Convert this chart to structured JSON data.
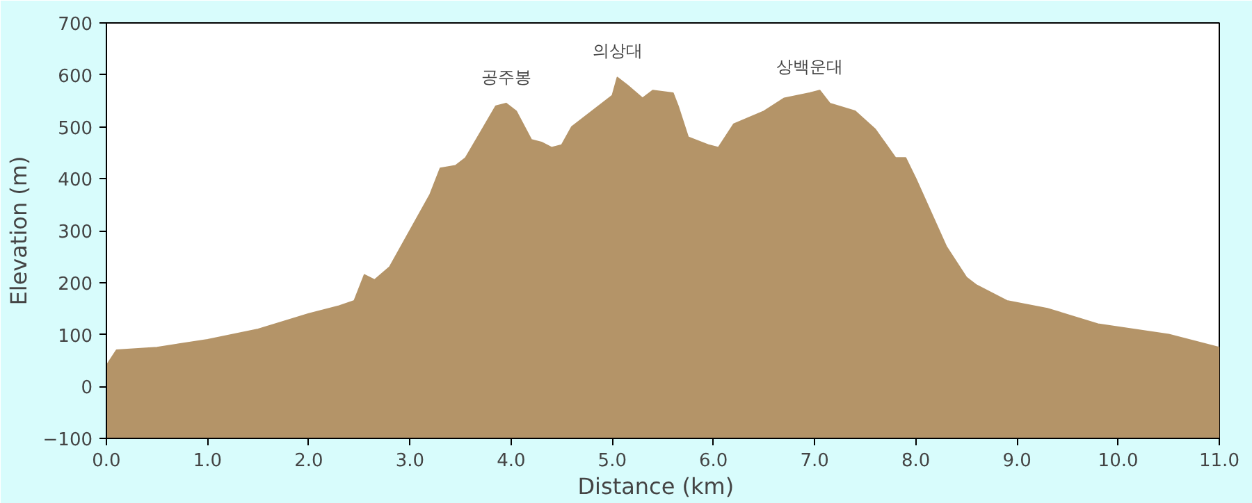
{
  "chart_data": {
    "type": "area",
    "xlabel": "Distance   (km)",
    "ylabel": "Elevation (m)",
    "xlim": [
      0,
      11.0
    ],
    "ylim": [
      -100,
      700
    ],
    "xticks": [
      {
        "value": 0,
        "label": "0.0"
      },
      {
        "value": 1,
        "label": "1.0"
      },
      {
        "value": 2,
        "label": "2.0"
      },
      {
        "value": 3,
        "label": "3.0"
      },
      {
        "value": 4,
        "label": "4.0"
      },
      {
        "value": 5,
        "label": "5.0"
      },
      {
        "value": 6,
        "label": "6.0"
      },
      {
        "value": 7,
        "label": "7.0"
      },
      {
        "value": 8,
        "label": "8.0"
      },
      {
        "value": 9,
        "label": "9.0"
      },
      {
        "value": 10,
        "label": "10.0"
      },
      {
        "value": 11,
        "label": "11.0"
      }
    ],
    "yticks": [
      -100,
      0,
      100,
      200,
      300,
      400,
      500,
      600,
      700
    ],
    "grid": false,
    "bands": [
      {
        "axis": "y",
        "from": -100,
        "to": 0,
        "color": "#b49468"
      }
    ],
    "x": [
      0.0,
      0.1,
      0.5,
      1.0,
      1.5,
      2.0,
      2.3,
      2.45,
      2.55,
      2.65,
      2.8,
      3.0,
      3.2,
      3.3,
      3.45,
      3.55,
      3.7,
      3.85,
      3.95,
      4.05,
      4.2,
      4.3,
      4.4,
      4.5,
      4.6,
      4.8,
      5.0,
      5.05,
      5.15,
      5.3,
      5.4,
      5.6,
      5.65,
      5.75,
      5.95,
      6.05,
      6.2,
      6.5,
      6.7,
      6.95,
      7.05,
      7.15,
      7.4,
      7.6,
      7.8,
      7.9,
      8.0,
      8.3,
      8.5,
      8.6,
      8.9,
      9.3,
      9.8,
      10.5,
      11.0
    ],
    "series": [
      {
        "color": "#b49468",
        "values": [
          40,
          70,
          75,
          90,
          110,
          140,
          155,
          165,
          215,
          205,
          230,
          300,
          370,
          420,
          425,
          440,
          490,
          540,
          545,
          530,
          475,
          470,
          460,
          465,
          500,
          530,
          560,
          595,
          580,
          555,
          570,
          565,
          540,
          480,
          465,
          460,
          505,
          530,
          555,
          565,
          570,
          545,
          530,
          495,
          440,
          440,
          400,
          270,
          210,
          195,
          165,
          150,
          120,
          100,
          75
        ]
      }
    ],
    "annotations": [
      {
        "text": "공주봉",
        "x": 3.95,
        "y": 545
      },
      {
        "text": "의상대",
        "x": 5.05,
        "y": 595
      },
      {
        "text": "상백운대",
        "x": 6.95,
        "y": 565
      }
    ]
  }
}
